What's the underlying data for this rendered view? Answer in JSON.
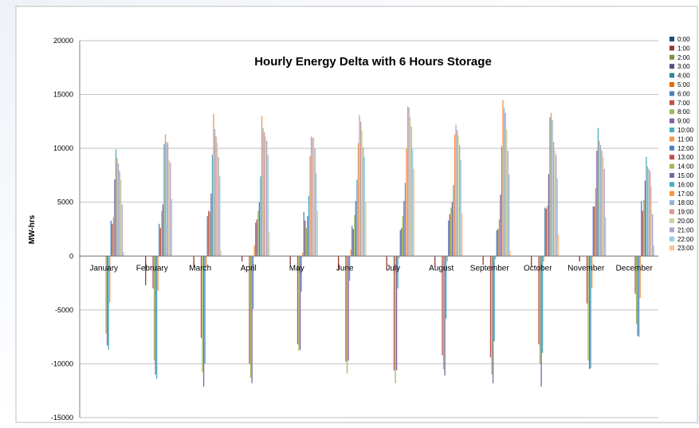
{
  "chart_data": {
    "type": "bar",
    "title": "Hourly Energy Delta with 6 Hours Storage",
    "ylabel": "MW-hrs",
    "xlabel": "",
    "ylim": [
      -15000,
      20000
    ],
    "yticks": [
      "20000",
      "15000",
      "10000",
      "5000",
      "0",
      "-5000",
      "-10000",
      "-15000"
    ],
    "grid": true,
    "legend_position": "right",
    "categories": [
      "January",
      "February",
      "March",
      "April",
      "May",
      "June",
      "July",
      "August",
      "September",
      "October",
      "November",
      "December"
    ],
    "colors": [
      "#1f497d",
      "#953735",
      "#77933c",
      "#5f497a",
      "#31859c",
      "#e46c0a",
      "#4f81bd",
      "#c0504d",
      "#9bbb59",
      "#8064a2",
      "#4bacc6",
      "#f79646",
      "#4f81bd",
      "#c0504d",
      "#9bbb59",
      "#8064a2",
      "#4bacc6",
      "#f79646",
      "#95b3d7",
      "#d99694",
      "#c3d69b",
      "#b3a2c7",
      "#93cddd",
      "#fac090"
    ],
    "series": [
      {
        "name": "0:00",
        "values": [
          0,
          0,
          0,
          0,
          0,
          0,
          0,
          0,
          0,
          0,
          0,
          0
        ]
      },
      {
        "name": "1:00",
        "values": [
          0,
          -2700,
          -1000,
          -500,
          -800,
          -1300,
          -1300,
          -1000,
          -800,
          -1000,
          -500,
          0
        ]
      },
      {
        "name": "2:00",
        "values": [
          0,
          0,
          0,
          0,
          0,
          0,
          0,
          0,
          0,
          0,
          0,
          0
        ]
      },
      {
        "name": "3:00",
        "values": [
          0,
          0,
          0,
          0,
          0,
          0,
          0,
          0,
          0,
          0,
          0,
          0
        ]
      },
      {
        "name": "4:00",
        "values": [
          0,
          0,
          0,
          0,
          0,
          0,
          0,
          0,
          0,
          0,
          0,
          0
        ]
      },
      {
        "name": "5:00",
        "values": [
          0,
          0,
          0,
          0,
          0,
          0,
          0,
          0,
          0,
          0,
          0,
          0
        ]
      },
      {
        "name": "6:00",
        "values": [
          0,
          0,
          0,
          0,
          0,
          0,
          0,
          0,
          0,
          0,
          0,
          0
        ]
      },
      {
        "name": "7:00",
        "values": [
          0,
          -3000,
          -7600,
          -10000,
          -8200,
          -9800,
          -10600,
          -9200,
          -9400,
          -8200,
          -4400,
          -3500
        ]
      },
      {
        "name": "8:00",
        "values": [
          -7200,
          -9700,
          -10800,
          -11300,
          -8800,
          -10900,
          -11800,
          -10500,
          -11000,
          -10000,
          -9700,
          -6300
        ]
      },
      {
        "name": "9:00",
        "values": [
          -8300,
          -11000,
          -12100,
          -11800,
          -8700,
          -9700,
          -10600,
          -11100,
          -11800,
          -12100,
          -10500,
          -7400
        ]
      },
      {
        "name": "10:00",
        "values": [
          -8700,
          -11400,
          -10000,
          -4900,
          -3300,
          -2300,
          -3000,
          -5800,
          -7900,
          -9000,
          -10400,
          -7500
        ]
      },
      {
        "name": "11:00",
        "values": [
          -4300,
          -3200,
          -1000,
          1000,
          300,
          600,
          -200,
          -500,
          -300,
          -500,
          -3000,
          -3900
        ]
      },
      {
        "name": "12:00",
        "values": [
          3300,
          3000,
          3700,
          3100,
          4100,
          2800,
          2400,
          3300,
          2400,
          4500,
          4600,
          5100
        ]
      },
      {
        "name": "13:00",
        "values": [
          3000,
          2600,
          4200,
          3400,
          3300,
          2500,
          2600,
          3900,
          2500,
          4400,
          4600,
          4200
        ]
      },
      {
        "name": "14:00",
        "values": [
          3600,
          4200,
          4100,
          4200,
          2600,
          3800,
          3700,
          4500,
          3400,
          4700,
          6300,
          5200
        ]
      },
      {
        "name": "15:00",
        "values": [
          7100,
          4800,
          5800,
          5000,
          3700,
          5100,
          5100,
          5000,
          5700,
          7600,
          9800,
          7000
        ]
      },
      {
        "name": "16:00",
        "values": [
          9900,
          10400,
          9400,
          7400,
          5600,
          7100,
          6800,
          6600,
          10200,
          12900,
          11900,
          9200
        ]
      },
      {
        "name": "17:00",
        "values": [
          9100,
          11300,
          13200,
          13000,
          9300,
          10500,
          10000,
          11300,
          14500,
          13300,
          10700,
          8300
        ]
      },
      {
        "name": "18:00",
        "values": [
          8600,
          10600,
          11800,
          11900,
          11100,
          13100,
          13900,
          12200,
          13800,
          12600,
          10300,
          8100
        ]
      },
      {
        "name": "19:00",
        "values": [
          7900,
          10500,
          11100,
          11500,
          11000,
          12500,
          13800,
          11700,
          13300,
          10600,
          9800,
          7900
        ]
      },
      {
        "name": "20:00",
        "values": [
          7100,
          8900,
          10500,
          11100,
          11000,
          11700,
          12900,
          11200,
          11800,
          9800,
          9200,
          6400
        ]
      },
      {
        "name": "21:00",
        "values": [
          4800,
          8700,
          9200,
          10700,
          10000,
          10100,
          12000,
          10300,
          9800,
          9400,
          8100,
          3900
        ]
      },
      {
        "name": "22:00",
        "values": [
          400,
          5300,
          7400,
          9400,
          7700,
          9200,
          9900,
          8900,
          7600,
          7200,
          3600,
          1000
        ]
      },
      {
        "name": "23:00",
        "values": [
          0,
          0,
          500,
          2200,
          4200,
          5000,
          8100,
          3900,
          500,
          2000,
          0,
          0
        ]
      }
    ]
  }
}
